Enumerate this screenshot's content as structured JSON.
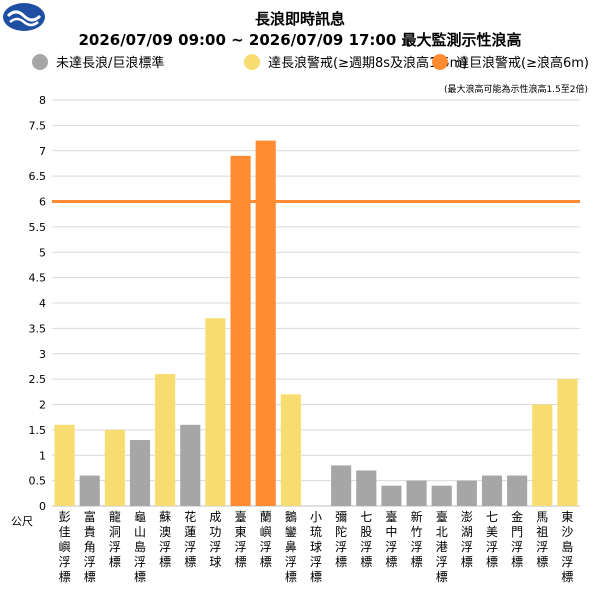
{
  "header": {
    "title": "長浪即時訊息",
    "subtitle": "2026/07/09 09:00 ~ 2026/07/09 17:00 最大監測示性浪高"
  },
  "legend": [
    {
      "label": "未達長浪/巨浪標準",
      "color": "#a6a6a6"
    },
    {
      "label": "達長浪警戒(≥週期8s及浪高1.5m)",
      "color": "#f7dc6f"
    },
    {
      "label": "達巨浪警戒(≥浪高6m)",
      "color": "#ff8c33"
    }
  ],
  "note": "(最大浪高可能為示性浪高1.5至2倍)",
  "chart_data": {
    "type": "bar",
    "ylabel": "公尺",
    "ylim": [
      0,
      8
    ],
    "y_ticks": [
      "0",
      "0.5",
      "1",
      "1.5",
      "2",
      "2.5",
      "3",
      "3.5",
      "4",
      "4.5",
      "5",
      "5.5",
      "6",
      "6.5",
      "7",
      "7.5",
      "8"
    ],
    "grid": true,
    "threshold_line": {
      "value": 6,
      "color": "#ff8c33"
    },
    "categories": [
      "彭佳嶼浮標",
      "富貴角浮標",
      "龍洞浮標",
      "龜山島浮標",
      "蘇澳浮標",
      "花蓮浮標",
      "成功浮球",
      "臺東浮標",
      "蘭嶼浮標",
      "鵝鑾鼻浮標",
      "小琉球浮標",
      "彌陀浮標",
      "七股浮標",
      "臺中浮標",
      "新竹浮標",
      "臺北港浮標",
      "澎湖浮標",
      "七美浮標",
      "金門浮標",
      "馬祖浮標",
      "東沙島浮標"
    ],
    "values": [
      1.6,
      0.6,
      1.5,
      1.3,
      2.6,
      1.6,
      3.7,
      6.9,
      7.2,
      2.2,
      0,
      0.8,
      0.7,
      0.4,
      0.5,
      0.4,
      0.5,
      0.6,
      0.6,
      2.0,
      2.5
    ],
    "colors": [
      "#f7dc6f",
      "#a6a6a6",
      "#f7dc6f",
      "#a6a6a6",
      "#f7dc6f",
      "#a6a6a6",
      "#f7dc6f",
      "#ff8c33",
      "#ff8c33",
      "#f7dc6f",
      "#a6a6a6",
      "#a6a6a6",
      "#a6a6a6",
      "#a6a6a6",
      "#a6a6a6",
      "#a6a6a6",
      "#a6a6a6",
      "#a6a6a6",
      "#a6a6a6",
      "#f7dc6f",
      "#f7dc6f"
    ]
  }
}
